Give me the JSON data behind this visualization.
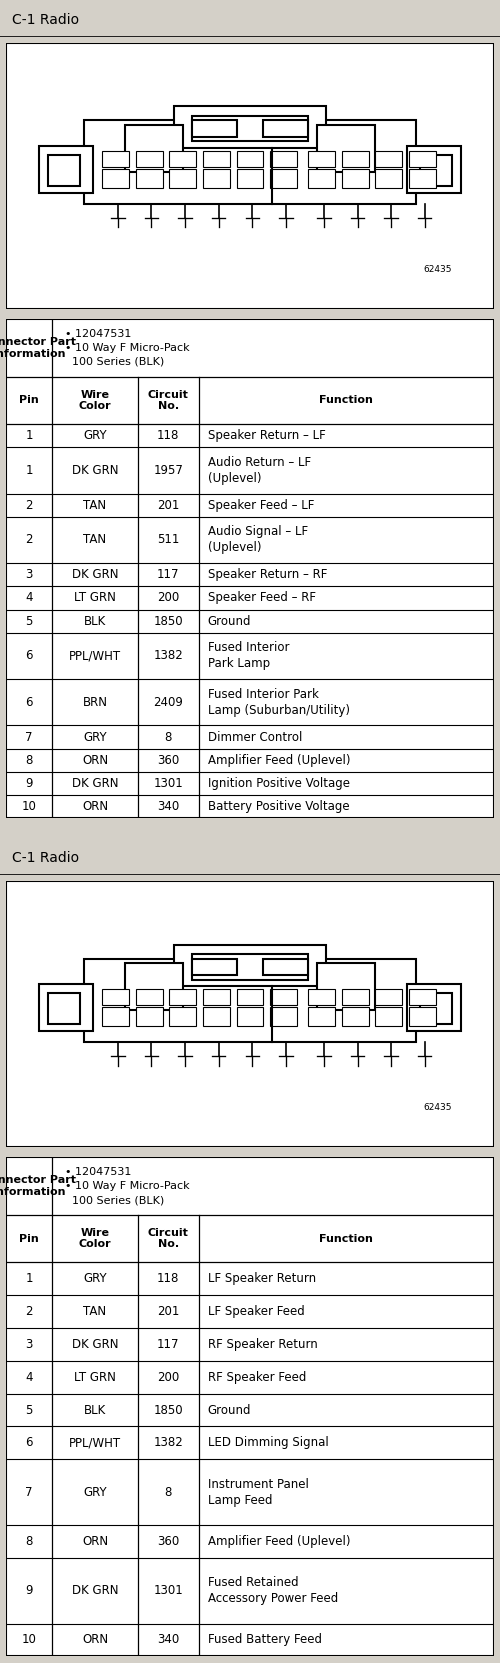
{
  "bg_color": "#d4d0c8",
  "table_bg": "#ffffff",
  "border_color": "#000000",
  "diagram1": {
    "title": "C-1 Radio",
    "connector_info_line1": "• 12047531",
    "connector_info_line2": "• 10 Way F Micro-Pack",
    "connector_info_line3": "  100 Series (BLK)",
    "part_number_label": "62435",
    "rows": [
      [
        "1",
        "GRY",
        "118",
        "Speaker Return – LF",
        1
      ],
      [
        "1",
        "DK GRN",
        "1957",
        "Audio Return – LF\n(Uplevel)",
        2
      ],
      [
        "2",
        "TAN",
        "201",
        "Speaker Feed – LF",
        1
      ],
      [
        "2",
        "TAN",
        "511",
        "Audio Signal – LF\n(Uplevel)",
        2
      ],
      [
        "3",
        "DK GRN",
        "117",
        "Speaker Return – RF",
        1
      ],
      [
        "4",
        "LT GRN",
        "200",
        "Speaker Feed – RF",
        1
      ],
      [
        "5",
        "BLK",
        "1850",
        "Ground",
        1
      ],
      [
        "6",
        "PPL/WHT",
        "1382",
        "Fused Interior\nPark Lamp",
        2
      ],
      [
        "6",
        "BRN",
        "2409",
        "Fused Interior Park\nLamp (Suburban/Utility)",
        2
      ],
      [
        "7",
        "GRY",
        "8",
        "Dimmer Control",
        1
      ],
      [
        "8",
        "ORN",
        "360",
        "Amplifier Feed (Uplevel)",
        1
      ],
      [
        "9",
        "DK GRN",
        "1301",
        "Ignition Positive Voltage",
        1
      ],
      [
        "10",
        "ORN",
        "340",
        "Battery Positive Voltage",
        1
      ]
    ]
  },
  "diagram2": {
    "title": "C-1 Radio",
    "connector_info_line1": "• 12047531",
    "connector_info_line2": "• 10 Way F Micro-Pack",
    "connector_info_line3": "  100 Series (BLK)",
    "part_number_label": "62435",
    "rows": [
      [
        "1",
        "GRY",
        "118",
        "LF Speaker Return",
        1
      ],
      [
        "2",
        "TAN",
        "201",
        "LF Speaker Feed",
        1
      ],
      [
        "3",
        "DK GRN",
        "117",
        "RF Speaker Return",
        1
      ],
      [
        "4",
        "LT GRN",
        "200",
        "RF Speaker Feed",
        1
      ],
      [
        "5",
        "BLK",
        "1850",
        "Ground",
        1
      ],
      [
        "6",
        "PPL/WHT",
        "1382",
        "LED Dimming Signal",
        1
      ],
      [
        "7",
        "GRY",
        "8",
        "Instrument Panel\nLamp Feed",
        2
      ],
      [
        "8",
        "ORN",
        "360",
        "Amplifier Feed (Uplevel)",
        1
      ],
      [
        "9",
        "DK GRN",
        "1301",
        "Fused Retained\nAccessory Power Feed",
        2
      ],
      [
        "10",
        "ORN",
        "340",
        "Fused Battery Feed",
        1
      ]
    ]
  }
}
